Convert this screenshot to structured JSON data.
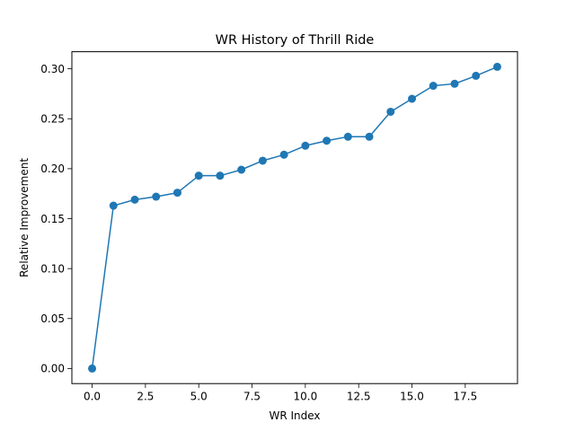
{
  "chart_data": {
    "type": "line",
    "title": "WR History of Thrill Ride",
    "xlabel": "WR Index",
    "ylabel": "Relative Improvement",
    "xlim": [
      -0.95,
      19.95
    ],
    "ylim": [
      -0.0151,
      0.3171
    ],
    "xticks": [
      0,
      2.5,
      5,
      7.5,
      10,
      12.5,
      15,
      17.5
    ],
    "xtick_labels": [
      "0.0",
      "2.5",
      "5.0",
      "7.5",
      "10.0",
      "12.5",
      "15.0",
      "17.5"
    ],
    "yticks": [
      0,
      0.05,
      0.1,
      0.15,
      0.2,
      0.25,
      0.3
    ],
    "ytick_labels": [
      "0.00",
      "0.05",
      "0.10",
      "0.15",
      "0.20",
      "0.25",
      "0.30"
    ],
    "grid": false,
    "color": "#1f77b4",
    "marker": "circle",
    "series": [
      {
        "x": [
          0,
          1,
          2,
          3,
          4,
          5,
          6,
          7,
          8,
          9,
          10,
          11,
          12,
          13,
          14,
          15,
          16,
          17,
          18,
          19
        ],
        "values": [
          0.0,
          0.163,
          0.169,
          0.172,
          0.176,
          0.193,
          0.193,
          0.199,
          0.208,
          0.214,
          0.223,
          0.228,
          0.232,
          0.232,
          0.257,
          0.27,
          0.283,
          0.285,
          0.293,
          0.302
        ]
      }
    ]
  }
}
